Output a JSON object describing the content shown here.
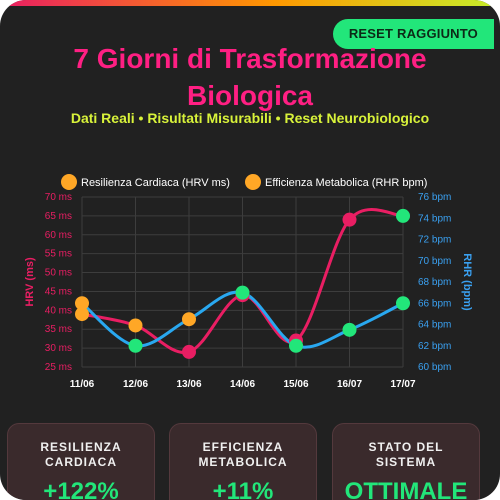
{
  "badge": "RESET RAGGIUNTO",
  "title": "7 Giorni di Trasformazione Biologica",
  "subtitle": "Dati Reali • Risultati Misurabili • Reset Neurobiologico",
  "colors": {
    "hrv": "#e91e63",
    "rhr": "#29a8f0",
    "hrv_axis": "#e91e63",
    "rhr_axis": "#3aa0f0",
    "legend_dot": "#ffa726",
    "accent_green": "#22e67a",
    "title": "#ff1f83",
    "subtitle": "#d8f23a"
  },
  "chart_data": {
    "type": "line",
    "categories": [
      "11/06",
      "12/06",
      "13/06",
      "14/06",
      "15/06",
      "16/07",
      "17/07"
    ],
    "series": [
      {
        "name": "Resilienza Cardiaca (HRV ms)",
        "axis": "left",
        "values": [
          39,
          36,
          29,
          44,
          32,
          64,
          65
        ],
        "point_colors": [
          "#ffa726",
          "#ffa726",
          "#e91e63",
          "#e91e63",
          "#e91e63",
          "#e91e63",
          "#22e67a"
        ]
      },
      {
        "name": "Efficienza Metabolica (RHR bpm)",
        "axis": "right",
        "values": [
          66.0,
          62.0,
          64.5,
          67.0,
          62.0,
          63.5,
          66.0
        ],
        "point_colors": [
          "#ffa726",
          "#22e67a",
          "#ffa726",
          "#22e67a",
          "#22e67a",
          "#22e67a",
          "#22e67a"
        ]
      }
    ],
    "y_left": {
      "label": "HRV (ms)",
      "ticks": [
        "70 ms",
        "65 ms",
        "60 ms",
        "55 ms",
        "50 ms",
        "45 ms",
        "40 ms",
        "35 ms",
        "30 ms",
        "25 ms"
      ],
      "range": [
        25,
        70
      ]
    },
    "y_right": {
      "label": "RHR (bpm)",
      "ticks": [
        "76 bpm",
        "74 bpm",
        "72 bpm",
        "70 bpm",
        "68 bpm",
        "66 bpm",
        "64 bpm",
        "62 bpm",
        "60 bpm"
      ],
      "range": [
        60,
        76
      ]
    },
    "grid": true,
    "legend_position": "top"
  },
  "cards": [
    {
      "label": "RESILIENZA\nCARDIACA",
      "value": "+122%"
    },
    {
      "label": "EFFICIENZA\nMETABOLICA",
      "value": "+11%"
    },
    {
      "label": "STATO DEL\nSISTEMA",
      "value": "OTTIMALE"
    }
  ]
}
